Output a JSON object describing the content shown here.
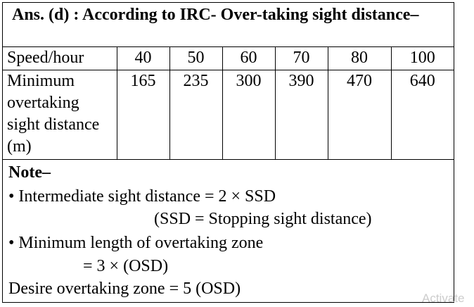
{
  "header": {
    "title": "Ans. (d) : According to IRC- Over-taking sight distance–"
  },
  "table": {
    "rows": [
      [
        "Speed/hour",
        "40",
        "50",
        "60",
        "70",
        "80",
        "100"
      ],
      [
        "Minimum overtaking sight distance (m)",
        "165",
        "235",
        "300",
        "390",
        "470",
        "640"
      ]
    ]
  },
  "note": {
    "title": "Note–",
    "lines": [
      "• Intermediate sight distance = 2 × SSD",
      "(SSD = Stopping sight distance)",
      "• Minimum length of overtaking zone",
      "= 3 × (OSD)",
      "Desire overtaking zone = 5 (OSD)"
    ]
  },
  "watermark": "Activate"
}
